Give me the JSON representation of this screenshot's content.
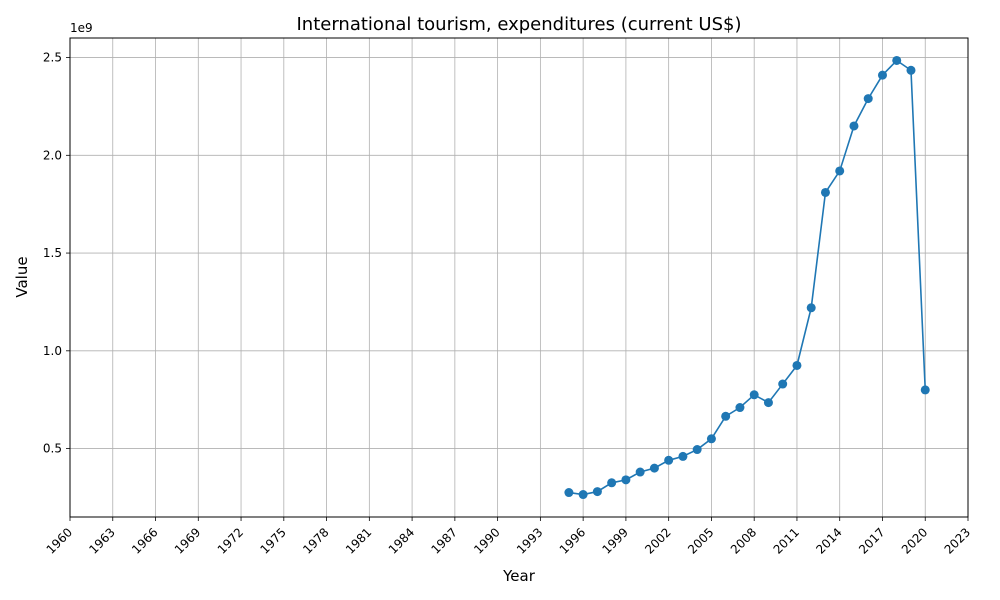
{
  "chart_data": {
    "type": "line",
    "title": "International tourism, expenditures (current US$)",
    "xlabel": "Year",
    "ylabel": "Value",
    "y_offset_label": "1e9",
    "xlim": [
      1960,
      2023
    ],
    "ylim": [
      0.15,
      2.6
    ],
    "x_ticks": [
      1960,
      1963,
      1966,
      1969,
      1972,
      1975,
      1978,
      1981,
      1984,
      1987,
      1990,
      1993,
      1996,
      1999,
      2002,
      2005,
      2008,
      2011,
      2014,
      2017,
      2020,
      2023
    ],
    "y_ticks": [
      0.5,
      1.0,
      1.5,
      2.0,
      2.5
    ],
    "y_tick_labels": [
      "0.5",
      "1.0",
      "1.5",
      "2.0",
      "2.5"
    ],
    "grid": true,
    "line_color": "#1f77b4",
    "series": [
      {
        "x": [
          1995,
          1996,
          1997,
          1998,
          1999,
          2000,
          2001,
          2002,
          2003,
          2004,
          2005,
          2006,
          2007,
          2008,
          2009,
          2010,
          2011,
          2012,
          2013,
          2014,
          2015,
          2016,
          2017,
          2018,
          2019,
          2020
        ],
        "values": [
          0.275,
          0.265,
          0.28,
          0.325,
          0.34,
          0.38,
          0.4,
          0.44,
          0.46,
          0.495,
          0.55,
          0.665,
          0.71,
          0.775,
          0.735,
          0.83,
          0.925,
          1.22,
          1.81,
          1.92,
          2.15,
          2.29,
          2.41,
          2.485,
          2.435,
          0.8
        ]
      }
    ]
  }
}
